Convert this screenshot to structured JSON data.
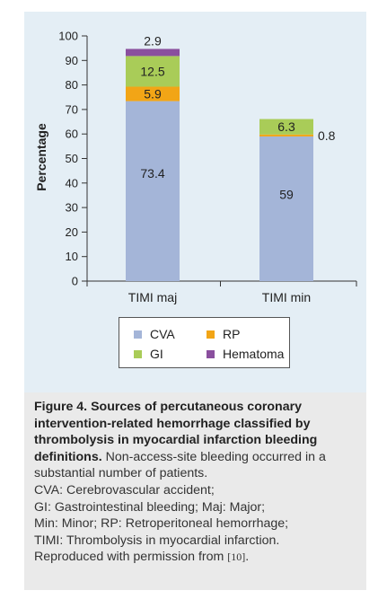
{
  "chart_data": {
    "type": "bar",
    "stacked": true,
    "categories": [
      "TIMI maj",
      "TIMI min"
    ],
    "series": [
      {
        "name": "CVA",
        "color": "#a4b5d8",
        "values": [
          73.4,
          59
        ]
      },
      {
        "name": "RP",
        "color": "#f2a516",
        "values": [
          5.9,
          0.8
        ]
      },
      {
        "name": "GI",
        "color": "#a9cc58",
        "values": [
          12.5,
          6.3
        ]
      },
      {
        "name": "Hematoma",
        "color": "#8a4f9e",
        "values": [
          2.9,
          0
        ]
      }
    ],
    "data_labels": [
      [
        "73.4",
        "5.9",
        "12.5",
        "2.9"
      ],
      [
        "59",
        "0.8",
        "6.3",
        ""
      ]
    ],
    "ylabel": "Percentage",
    "xlabel": "",
    "ylim": [
      0,
      100
    ],
    "yticks": [
      "0",
      "10",
      "20",
      "30",
      "40",
      "50",
      "60",
      "70",
      "80",
      "90",
      "100"
    ],
    "grid": false,
    "legend_placement": "bottom",
    "legend": [
      {
        "label": "CVA",
        "color": "#a4b5d8"
      },
      {
        "label": "RP",
        "color": "#f2a516"
      },
      {
        "label": "GI",
        "color": "#a9cc58"
      },
      {
        "label": "Hematoma",
        "color": "#8a4f9e"
      }
    ]
  },
  "caption": {
    "title": "Figure 4. Sources of percutaneous coronary intervention-related hemorrhage classified by thrombolysis in myocardial infarction bleeding definitions.",
    "body": " Non-access-site bleeding occurred in a substantial number of patients.",
    "abbreviations": [
      "CVA: Cerebrovascular accident;",
      "GI: Gastrointestinal bleeding; Maj: Major;",
      "Min: Minor; RP: Retroperitoneal hemorrhage;",
      "TIMI: Thrombolysis in myocardial infarction."
    ],
    "permission": "Reproduced with permission from ",
    "reference": "[10]",
    "permission_end": "."
  }
}
